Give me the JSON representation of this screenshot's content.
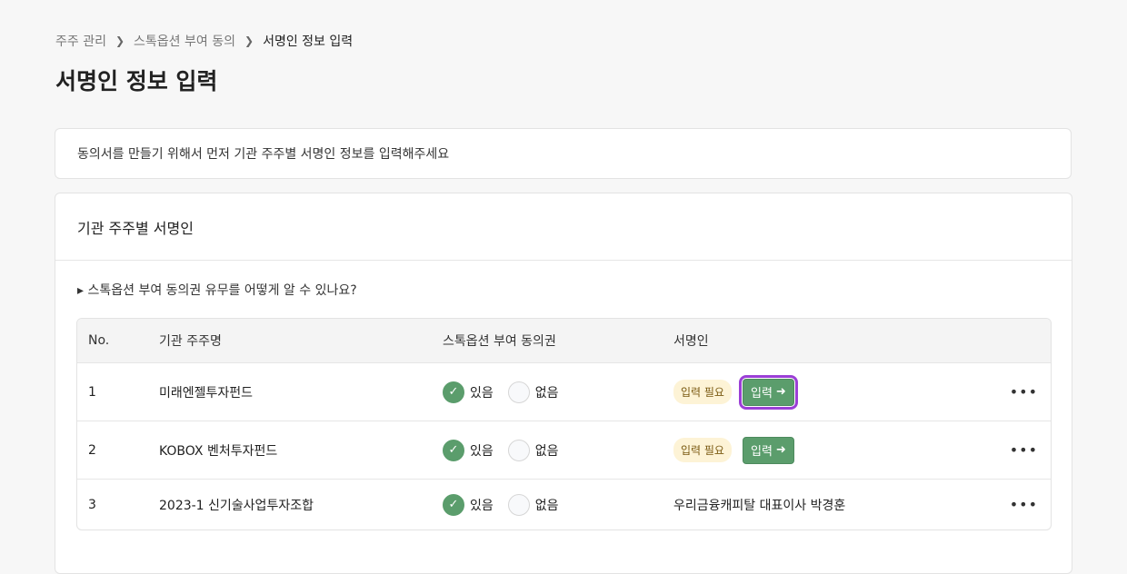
{
  "breadcrumb": [
    "주주 관리",
    "스톡옵션 부여 동의",
    "서명인 정보 입력"
  ],
  "title": "서명인 정보 입력",
  "notice": "동의서를 만들기 위해서 먼저 기관 주주별 서명인 정보를 입력해주세요",
  "card": {
    "title": "기관 주주별 서명인",
    "faq": "▸ 스톡옵션 부여 동의권 유무를 어떻게 알 수 있나요?"
  },
  "table": {
    "headers": [
      "No.",
      "기관 주주명",
      "스톡옵션 부여 동의권",
      "서명인"
    ],
    "yes_label": "있음",
    "no_label": "없음",
    "badge": "입력 필요",
    "input_button": "입력",
    "rows": [
      {
        "no": "1",
        "name": "미래엔젤투자펀드",
        "consent": "있음",
        "signer": ""
      },
      {
        "no": "2",
        "name": "KOBOX 벤처투자펀드",
        "consent": "있음",
        "signer": ""
      },
      {
        "no": "3",
        "name": "2023-1 신기술사업투자조합",
        "consent": "있음",
        "signer": "우리금융캐피탈 대표이사 박경훈"
      }
    ]
  },
  "colors": {
    "accent": "#5b9d6c",
    "focus": "#9b3fd6",
    "badge_bg": "#fdf3d6"
  }
}
